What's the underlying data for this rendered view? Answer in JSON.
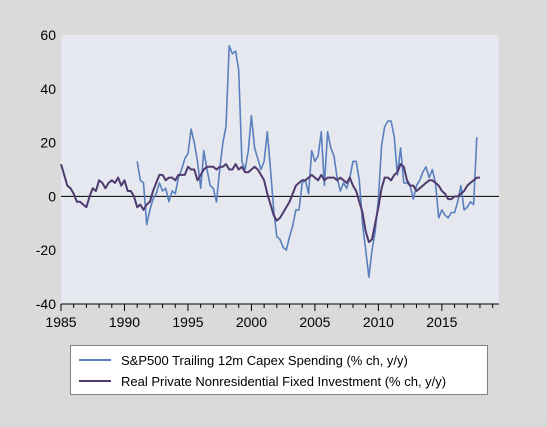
{
  "chart_data": {
    "type": "line",
    "title": "",
    "xlabel": "",
    "ylabel": "",
    "xlim": [
      1985,
      2019.5
    ],
    "ylim": [
      -40,
      60
    ],
    "x_ticks": [
      "1985",
      "1990",
      "1995",
      "2000",
      "2005",
      "2010",
      "2015"
    ],
    "y_ticks": [
      "60",
      "40",
      "20",
      "0",
      "-20",
      "-40"
    ],
    "grid": false,
    "zero_line": true,
    "legend_position": "bottom",
    "colors": {
      "plot_bg": "#e5e8ee",
      "frame_bg": "#dadada",
      "capex": "#5a7fbf",
      "investment": "#4e3a6e"
    },
    "series": [
      {
        "name": "S&P500 Trailing 12m Capex Spending (% ch, y/y)",
        "color": "#5a7fbf",
        "points": [
          [
            1991.0,
            13
          ],
          [
            1991.25,
            6
          ],
          [
            1991.5,
            5
          ],
          [
            1991.75,
            -10.5
          ],
          [
            1992.0,
            -5
          ],
          [
            1992.25,
            -1
          ],
          [
            1992.5,
            1
          ],
          [
            1992.75,
            5
          ],
          [
            1993.0,
            2
          ],
          [
            1993.25,
            3
          ],
          [
            1993.5,
            -2
          ],
          [
            1993.75,
            2
          ],
          [
            1994.0,
            1
          ],
          [
            1994.25,
            7
          ],
          [
            1994.5,
            10
          ],
          [
            1994.75,
            14
          ],
          [
            1995.0,
            16
          ],
          [
            1995.25,
            25
          ],
          [
            1995.5,
            20
          ],
          [
            1995.75,
            13
          ],
          [
            1996.0,
            3
          ],
          [
            1996.25,
            17
          ],
          [
            1996.5,
            10
          ],
          [
            1996.75,
            4
          ],
          [
            1997.0,
            3
          ],
          [
            1997.25,
            -2
          ],
          [
            1997.5,
            10
          ],
          [
            1997.75,
            20
          ],
          [
            1998.0,
            26
          ],
          [
            1998.25,
            56
          ],
          [
            1998.5,
            53
          ],
          [
            1998.75,
            54
          ],
          [
            1999.0,
            47
          ],
          [
            1999.25,
            13
          ],
          [
            1999.5,
            10
          ],
          [
            1999.75,
            17
          ],
          [
            2000.0,
            30
          ],
          [
            2000.25,
            18
          ],
          [
            2000.5,
            14
          ],
          [
            2000.75,
            10
          ],
          [
            2001.0,
            13
          ],
          [
            2001.25,
            24
          ],
          [
            2001.5,
            10
          ],
          [
            2001.75,
            -5
          ],
          [
            2002.0,
            -15
          ],
          [
            2002.25,
            -16
          ],
          [
            2002.5,
            -19
          ],
          [
            2002.75,
            -20
          ],
          [
            2003.0,
            -15
          ],
          [
            2003.25,
            -11
          ],
          [
            2003.5,
            -5
          ],
          [
            2003.75,
            -5
          ],
          [
            2004.0,
            5
          ],
          [
            2004.25,
            6
          ],
          [
            2004.5,
            1
          ],
          [
            2004.75,
            17
          ],
          [
            2005.0,
            13
          ],
          [
            2005.25,
            15
          ],
          [
            2005.5,
            24
          ],
          [
            2005.75,
            4
          ],
          [
            2006.0,
            24
          ],
          [
            2006.25,
            18
          ],
          [
            2006.5,
            15
          ],
          [
            2006.75,
            7
          ],
          [
            2007.0,
            2
          ],
          [
            2007.25,
            5
          ],
          [
            2007.5,
            3
          ],
          [
            2007.75,
            7
          ],
          [
            2008.0,
            13
          ],
          [
            2008.25,
            13
          ],
          [
            2008.5,
            6
          ],
          [
            2008.75,
            -10
          ],
          [
            2009.0,
            -20
          ],
          [
            2009.25,
            -30
          ],
          [
            2009.5,
            -20
          ],
          [
            2009.75,
            -13
          ],
          [
            2010.0,
            -1
          ],
          [
            2010.25,
            19
          ],
          [
            2010.5,
            26
          ],
          [
            2010.75,
            28
          ],
          [
            2011.0,
            28
          ],
          [
            2011.25,
            22
          ],
          [
            2011.5,
            8
          ],
          [
            2011.75,
            18
          ],
          [
            2012.0,
            5
          ],
          [
            2012.25,
            5
          ],
          [
            2012.5,
            4
          ],
          [
            2012.75,
            -1
          ],
          [
            2013.0,
            4
          ],
          [
            2013.25,
            6
          ],
          [
            2013.5,
            9
          ],
          [
            2013.75,
            11
          ],
          [
            2014.0,
            7
          ],
          [
            2014.25,
            10
          ],
          [
            2014.5,
            5
          ],
          [
            2014.75,
            -8
          ],
          [
            2015.0,
            -5
          ],
          [
            2015.25,
            -7
          ],
          [
            2015.5,
            -8
          ],
          [
            2015.75,
            -6
          ],
          [
            2016.0,
            -6
          ],
          [
            2016.25,
            -2
          ],
          [
            2016.5,
            4
          ],
          [
            2016.75,
            -5
          ],
          [
            2017.0,
            -4
          ],
          [
            2017.25,
            -2
          ],
          [
            2017.5,
            -3
          ],
          [
            2017.75,
            22
          ]
        ]
      },
      {
        "name": "Real Private Nonresidential Fixed Investment (% ch, y/y)",
        "color": "#4e3a6e",
        "points": [
          [
            1985.0,
            12
          ],
          [
            1985.25,
            8
          ],
          [
            1985.5,
            4
          ],
          [
            1985.75,
            3
          ],
          [
            1986.0,
            1
          ],
          [
            1986.25,
            -2
          ],
          [
            1986.5,
            -2
          ],
          [
            1986.75,
            -3
          ],
          [
            1987.0,
            -4
          ],
          [
            1987.25,
            0
          ],
          [
            1987.5,
            3
          ],
          [
            1987.75,
            2
          ],
          [
            1988.0,
            6
          ],
          [
            1988.25,
            5
          ],
          [
            1988.5,
            3
          ],
          [
            1988.75,
            5
          ],
          [
            1989.0,
            6
          ],
          [
            1989.25,
            5
          ],
          [
            1989.5,
            7
          ],
          [
            1989.75,
            4
          ],
          [
            1990.0,
            6
          ],
          [
            1990.25,
            2
          ],
          [
            1990.5,
            2
          ],
          [
            1990.75,
            0
          ],
          [
            1991.0,
            -4
          ],
          [
            1991.25,
            -3
          ],
          [
            1991.5,
            -5
          ],
          [
            1991.75,
            -3
          ],
          [
            1992.0,
            -2
          ],
          [
            1992.25,
            2
          ],
          [
            1992.5,
            5
          ],
          [
            1992.75,
            8
          ],
          [
            1993.0,
            8
          ],
          [
            1993.25,
            6
          ],
          [
            1993.5,
            7
          ],
          [
            1993.75,
            7
          ],
          [
            1994.0,
            6
          ],
          [
            1994.25,
            8
          ],
          [
            1994.5,
            8
          ],
          [
            1994.75,
            8
          ],
          [
            1995.0,
            11
          ],
          [
            1995.25,
            10
          ],
          [
            1995.5,
            10
          ],
          [
            1995.75,
            6
          ],
          [
            1996.0,
            8
          ],
          [
            1996.25,
            10
          ],
          [
            1996.5,
            11
          ],
          [
            1996.75,
            11
          ],
          [
            1997.0,
            11
          ],
          [
            1997.25,
            10
          ],
          [
            1997.5,
            11
          ],
          [
            1997.75,
            11
          ],
          [
            1998.0,
            12
          ],
          [
            1998.25,
            10
          ],
          [
            1998.5,
            10
          ],
          [
            1998.75,
            12
          ],
          [
            1999.0,
            10
          ],
          [
            1999.25,
            11
          ],
          [
            1999.5,
            9
          ],
          [
            1999.75,
            9
          ],
          [
            2000.0,
            10
          ],
          [
            2000.25,
            11
          ],
          [
            2000.5,
            10
          ],
          [
            2000.75,
            8
          ],
          [
            2001.0,
            6
          ],
          [
            2001.25,
            1
          ],
          [
            2001.5,
            -3
          ],
          [
            2001.75,
            -7
          ],
          [
            2002.0,
            -9
          ],
          [
            2002.25,
            -8
          ],
          [
            2002.5,
            -6
          ],
          [
            2002.75,
            -4
          ],
          [
            2003.0,
            -2
          ],
          [
            2003.25,
            1
          ],
          [
            2003.5,
            4
          ],
          [
            2003.75,
            5
          ],
          [
            2004.0,
            6
          ],
          [
            2004.25,
            6
          ],
          [
            2004.5,
            7
          ],
          [
            2004.75,
            8
          ],
          [
            2005.0,
            7
          ],
          [
            2005.25,
            6
          ],
          [
            2005.5,
            8
          ],
          [
            2005.75,
            6
          ],
          [
            2006.0,
            7
          ],
          [
            2006.25,
            7
          ],
          [
            2006.5,
            7
          ],
          [
            2006.75,
            6
          ],
          [
            2007.0,
            7
          ],
          [
            2007.25,
            6
          ],
          [
            2007.5,
            5
          ],
          [
            2007.75,
            7
          ],
          [
            2008.0,
            4
          ],
          [
            2008.25,
            2
          ],
          [
            2008.5,
            -2
          ],
          [
            2008.75,
            -6
          ],
          [
            2009.0,
            -13
          ],
          [
            2009.25,
            -17
          ],
          [
            2009.5,
            -16
          ],
          [
            2009.75,
            -10
          ],
          [
            2010.0,
            -4
          ],
          [
            2010.25,
            3
          ],
          [
            2010.5,
            7
          ],
          [
            2010.75,
            7
          ],
          [
            2011.0,
            6
          ],
          [
            2011.25,
            8
          ],
          [
            2011.5,
            9
          ],
          [
            2011.75,
            12
          ],
          [
            2012.0,
            11
          ],
          [
            2012.25,
            6
          ],
          [
            2012.5,
            4
          ],
          [
            2012.75,
            4
          ],
          [
            2013.0,
            2
          ],
          [
            2013.25,
            3
          ],
          [
            2013.5,
            4
          ],
          [
            2013.75,
            5
          ],
          [
            2014.0,
            6
          ],
          [
            2014.25,
            6
          ],
          [
            2014.5,
            5
          ],
          [
            2014.75,
            4
          ],
          [
            2015.0,
            2
          ],
          [
            2015.25,
            1
          ],
          [
            2015.5,
            -1
          ],
          [
            2015.75,
            -1
          ],
          [
            2016.0,
            0
          ],
          [
            2016.25,
            0
          ],
          [
            2016.5,
            1
          ],
          [
            2016.75,
            2
          ],
          [
            2017.0,
            4
          ],
          [
            2017.25,
            5
          ],
          [
            2017.5,
            6
          ],
          [
            2017.75,
            7
          ],
          [
            2018.0,
            7
          ]
        ]
      }
    ]
  }
}
